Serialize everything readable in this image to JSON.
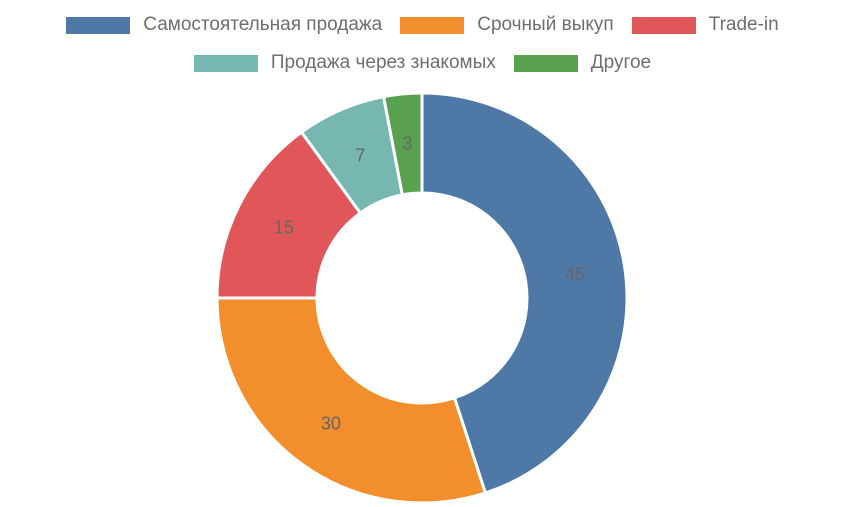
{
  "chart_data": {
    "type": "pie",
    "subtype": "donut",
    "title": "",
    "categories": [
      "Самостоятельная продажа",
      "Срочный выкуп",
      "Trade-in",
      "Продажа через знакомых",
      "Другое"
    ],
    "values": [
      45,
      30,
      15,
      7,
      3
    ],
    "colors": [
      "#4e79a7",
      "#f28e2b",
      "#e15759",
      "#76b7b2",
      "#59a14f"
    ],
    "data_labels": [
      "45",
      "30",
      "15",
      "7",
      "3"
    ],
    "legend_position": "top",
    "start_angle_deg": 0,
    "direction": "clockwise"
  },
  "legend": {
    "items": [
      {
        "label": "Самостоятельная продажа",
        "color": "#4e79a7"
      },
      {
        "label": "Срочный выкуп",
        "color": "#f28e2b"
      },
      {
        "label": "Trade-in",
        "color": "#e15759"
      },
      {
        "label": "Продажа через знакомых",
        "color": "#76b7b2"
      },
      {
        "label": "Другое",
        "color": "#59a14f"
      }
    ]
  }
}
